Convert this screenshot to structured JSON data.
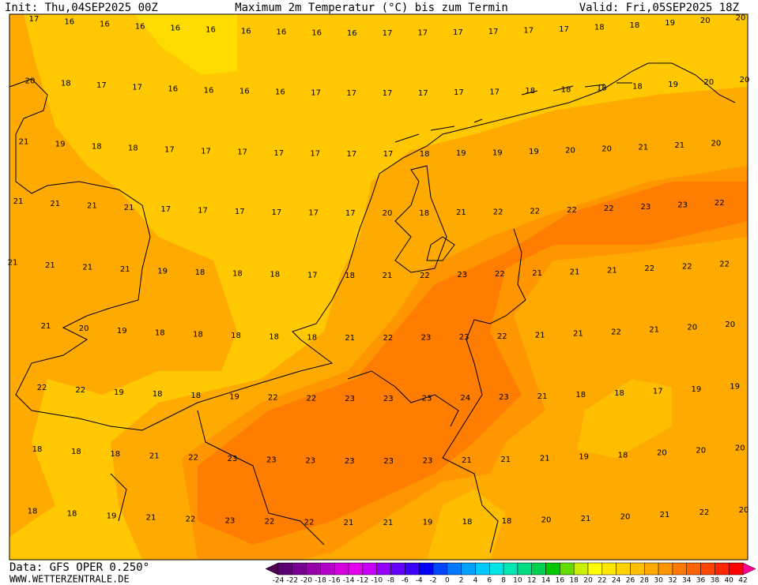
{
  "header": {
    "init": "Init: Thu,04SEP2025 00Z",
    "title": "Maximum 2m Temperatur (°C) bis zum Termin",
    "valid": "Valid: Fri,05SEP2025 18Z"
  },
  "footer": {
    "source": "Data: GFS OPER 0.250°",
    "site": "WWW.WETTERZENTRALE.DE"
  },
  "grid_rows": [
    [
      17,
      16,
      16,
      16,
      16,
      16,
      16,
      16,
      16,
      16,
      17,
      17,
      17,
      17,
      17,
      17,
      18,
      18,
      19,
      20,
      20
    ],
    [
      20,
      18,
      17,
      17,
      16,
      16,
      16,
      16,
      17,
      17,
      17,
      17,
      17,
      17,
      18,
      18,
      18,
      18,
      19,
      20,
      20
    ],
    [
      21,
      19,
      18,
      18,
      17,
      17,
      17,
      17,
      17,
      17,
      17,
      18,
      19,
      19,
      19,
      20,
      20,
      21,
      21,
      20
    ],
    [
      21,
      21,
      21,
      21,
      17,
      17,
      17,
      17,
      17,
      17,
      20,
      18,
      21,
      22,
      22,
      22,
      22,
      23,
      23,
      22
    ],
    [
      21,
      21,
      21,
      21,
      19,
      18,
      18,
      18,
      17,
      18,
      21,
      22,
      23,
      22,
      21,
      21,
      21,
      22,
      22,
      22
    ],
    [
      21,
      20,
      19,
      18,
      18,
      18,
      18,
      18,
      21,
      22,
      23,
      23,
      22,
      21,
      21,
      22,
      21,
      20,
      20
    ],
    [
      22,
      22,
      19,
      18,
      18,
      19,
      22,
      22,
      23,
      23,
      23,
      24,
      23,
      21,
      18,
      18,
      17,
      19,
      19
    ],
    [
      18,
      18,
      18,
      21,
      22,
      23,
      23,
      23,
      23,
      23,
      23,
      21,
      21,
      21,
      19,
      18,
      20,
      20,
      20
    ],
    [
      18,
      18,
      19,
      21,
      22,
      23,
      22,
      22,
      21,
      21,
      19,
      18,
      18,
      20,
      21,
      20,
      21,
      22,
      20
    ]
  ],
  "colorbar": {
    "ticks": [
      -24,
      -22,
      -20,
      -18,
      -16,
      -14,
      -12,
      -10,
      -8,
      -6,
      -4,
      -2,
      0,
      2,
      4,
      6,
      8,
      10,
      12,
      14,
      16,
      18,
      20,
      22,
      24,
      26,
      28,
      30,
      32,
      34,
      36,
      38,
      40,
      42
    ],
    "colors": [
      "#4b0050",
      "#5a0070",
      "#780090",
      "#9600a8",
      "#b400c8",
      "#d200dc",
      "#e600f0",
      "#c800ff",
      "#9600ff",
      "#6400ff",
      "#3c00ff",
      "#0000ff",
      "#0046ff",
      "#0078ff",
      "#00a0ff",
      "#00c8ff",
      "#00e6e6",
      "#00e6b4",
      "#00dc82",
      "#00d250",
      "#00c800",
      "#64dc00",
      "#c8f000",
      "#ffff00",
      "#ffe600",
      "#ffd200",
      "#ffbe00",
      "#ffaa00",
      "#ff9600",
      "#ff7800",
      "#ff6400",
      "#ff4600",
      "#ff2800",
      "#ff0000",
      "#ff0090"
    ]
  }
}
